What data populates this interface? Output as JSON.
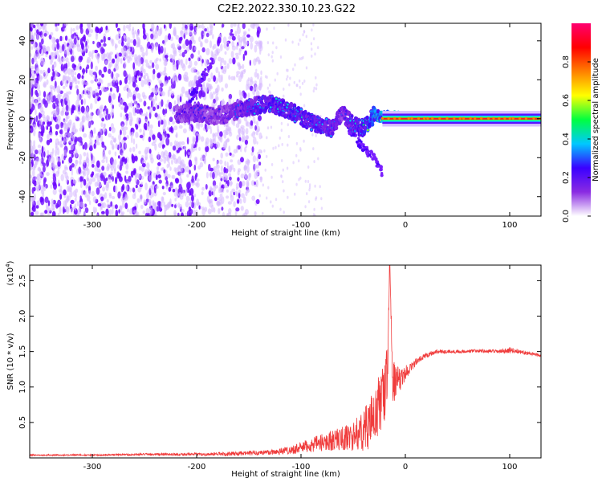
{
  "title": "C2E2.2022.330.10.23.G22",
  "chart_data": [
    {
      "type": "heatmap",
      "title": "",
      "xlabel": "Height of straight line (km)",
      "ylabel": "Frequency (Hz)",
      "xlim": [
        -360,
        130
      ],
      "ylim": [
        -50,
        49
      ],
      "x_ticks": [
        -300,
        -200,
        -100,
        0,
        100
      ],
      "y_ticks": [
        -40,
        -20,
        0,
        20,
        40
      ],
      "colorbar": {
        "label": "Normalized spectral amplitude",
        "range": [
          0,
          1
        ],
        "ticks": [
          0.0,
          0.2,
          0.4,
          0.6,
          0.8
        ],
        "tick_labels": [
          "0.0",
          "0.2",
          "0.4",
          "0.6",
          "0.8"
        ],
        "colors": [
          "#ffffff",
          "#8a2be2",
          "#3a00ff",
          "#00c8ff",
          "#00ff40",
          "#ffff00",
          "#ff8000",
          "#ff0000",
          "#ff0070"
        ]
      },
      "features": {
        "noise_region_x": [
          -360,
          -150
        ],
        "noise_amplitude": 0.2,
        "ridge": {
          "x": [
            -220,
            -200,
            -180,
            -150,
            -130,
            -110,
            -90,
            -70,
            -60,
            -50,
            -40,
            -30,
            -20,
            -10,
            0,
            50,
            100,
            130
          ],
          "y": [
            2,
            3,
            1,
            6,
            8,
            4,
            -2,
            -5,
            3,
            -3,
            -5,
            2,
            1,
            1,
            0,
            0,
            0,
            0
          ],
          "amplitude": [
            0.25,
            0.3,
            0.25,
            0.35,
            0.4,
            0.4,
            0.4,
            0.35,
            0.3,
            0.4,
            0.45,
            0.6,
            0.7,
            0.75,
            0.8,
            0.8,
            0.8,
            0.8
          ]
        },
        "descending_branch": {
          "x": [
            -55,
            -40,
            -30,
            -20
          ],
          "y": [
            -5,
            -15,
            -20,
            -30
          ]
        },
        "rising_branch": {
          "x": [
            -215,
            -200,
            -185
          ],
          "y": [
            2,
            15,
            30
          ]
        }
      }
    },
    {
      "type": "line",
      "title": "",
      "xlabel": "Height of straight line (km)",
      "ylabel": "SNR (10 * v/v)",
      "y_scale_note": "(x10",
      "y_scale_exp": "4",
      "y_scale_close": ")",
      "xlim": [
        -360,
        130
      ],
      "ylim": [
        0,
        2.72
      ],
      "x_ticks": [
        -300,
        -200,
        -100,
        0,
        100
      ],
      "y_ticks": [
        0.5,
        1.0,
        1.5,
        2.0,
        2.5
      ],
      "y_tick_labels": [
        "0.5",
        "1.0",
        "1.5",
        "2.0",
        "2.5"
      ],
      "color": "#f03c3c",
      "series": [
        {
          "x": [
            -360,
            -300,
            -250,
            -200,
            -160,
            -130,
            -110,
            -90,
            -70,
            -50,
            -40,
            -30,
            -25,
            -20,
            -17,
            -15,
            -12,
            -8,
            -4,
            0,
            10,
            20,
            30,
            50,
            70,
            90,
            100,
            110,
            120,
            130
          ],
          "y": [
            0.04,
            0.04,
            0.05,
            0.05,
            0.06,
            0.08,
            0.11,
            0.18,
            0.25,
            0.3,
            0.4,
            0.55,
            0.75,
            0.95,
            1.2,
            2.72,
            1.1,
            1.05,
            1.1,
            1.2,
            1.35,
            1.45,
            1.5,
            1.5,
            1.51,
            1.5,
            1.52,
            1.5,
            1.47,
            1.45
          ],
          "noise": [
            0.01,
            0.01,
            0.015,
            0.02,
            0.03,
            0.04,
            0.06,
            0.1,
            0.15,
            0.2,
            0.3,
            0.4,
            0.45,
            0.45,
            0.4,
            0.0,
            0.3,
            0.25,
            0.15,
            0.1,
            0.05,
            0.04,
            0.03,
            0.025,
            0.025,
            0.025,
            0.04,
            0.03,
            0.025,
            0.025
          ]
        }
      ]
    }
  ]
}
